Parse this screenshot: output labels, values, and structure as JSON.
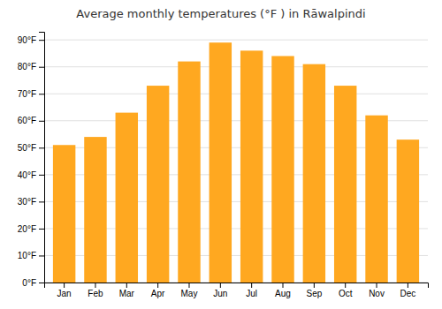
{
  "chart_data": {
    "type": "bar",
    "title": "Average monthly temperatures (°F ) in Rāwalpindi",
    "categories": [
      "Jan",
      "Feb",
      "Mar",
      "Apr",
      "May",
      "Jun",
      "Jul",
      "Aug",
      "Sep",
      "Oct",
      "Nov",
      "Dec"
    ],
    "values": [
      51,
      54,
      63,
      73,
      82,
      89,
      86,
      84,
      81,
      73,
      62,
      53
    ],
    "color": "#FFA820",
    "ylim": [
      0,
      93
    ],
    "yticks": [
      {
        "value": 0,
        "label": "0°F"
      },
      {
        "value": 10,
        "label": "10°F"
      },
      {
        "value": 20,
        "label": "20°F"
      },
      {
        "value": 30,
        "label": "30°F"
      },
      {
        "value": 40,
        "label": "40°F"
      },
      {
        "value": 50,
        "label": "50°F"
      },
      {
        "value": 60,
        "label": "60°F"
      },
      {
        "value": 70,
        "label": "70°F"
      },
      {
        "value": 80,
        "label": "80°F"
      },
      {
        "value": 90,
        "label": "90°F"
      }
    ],
    "grid": true
  }
}
